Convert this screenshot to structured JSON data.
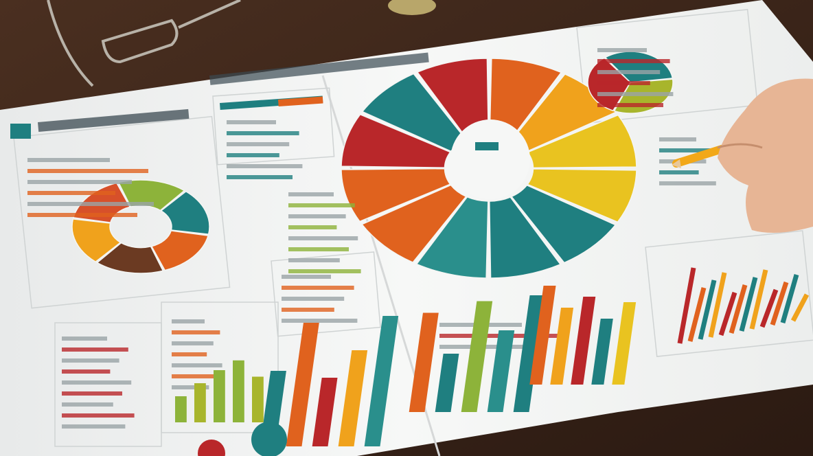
{
  "scene": {
    "description_colors": {
      "desk": "#3a2418",
      "paper": "#f4f5f3",
      "teal": "#1f7f80",
      "red": "#b9272a",
      "orange": "#e0621e",
      "amber": "#f0a21c",
      "yellow": "#e9c320",
      "green": "#8db33a",
      "brown": "#6b3a22"
    },
    "wheel_segments": [
      "#1f7f80",
      "#b9272a",
      "#e0621e",
      "#f0a21c",
      "#e9c320",
      "#e9c320",
      "#1f7f80",
      "#1f7f80",
      "#2a8f8c",
      "#e0621e",
      "#e0621e",
      "#b9272a"
    ],
    "donut_segments": [
      "#8db33a",
      "#1f7f80",
      "#e0621e",
      "#6b3a22",
      "#f0a21c",
      "#d7502a"
    ],
    "small_pie": [
      "#1f7f80",
      "#a8b52c",
      "#b9272a"
    ],
    "bar_groups": [
      {
        "colors": [
          "#1f7f80",
          "#e0621e",
          "#b9272a",
          "#f0a21c",
          "#2a8f8c"
        ],
        "values": [
          0.55,
          0.9,
          0.5,
          0.7,
          0.95
        ]
      },
      {
        "colors": [
          "#e0621e",
          "#1f7f80",
          "#8db33a",
          "#2a8f8c",
          "#1f7f80"
        ],
        "values": [
          0.85,
          0.5,
          0.95,
          0.7,
          1.0
        ]
      },
      {
        "colors": [
          "#e0621e",
          "#f0a21c",
          "#b9272a",
          "#1f7f80",
          "#e9c320"
        ],
        "values": [
          0.9,
          0.7,
          0.8,
          0.6,
          0.75
        ]
      },
      {
        "colors": [
          "#8db33a",
          "#a8b52c",
          "#8db33a",
          "#8db33a",
          "#a8b52c"
        ],
        "values": [
          0.4,
          0.6,
          0.8,
          0.95,
          0.7
        ]
      }
    ]
  }
}
